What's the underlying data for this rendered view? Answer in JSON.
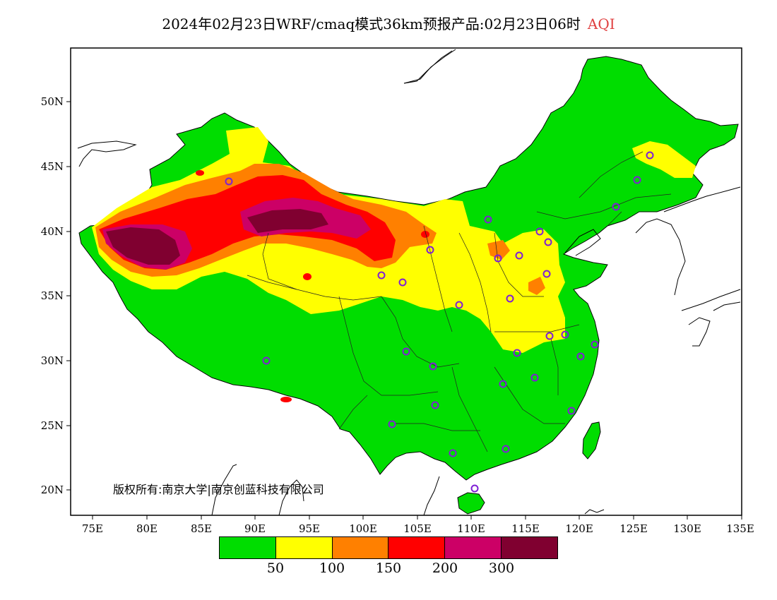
{
  "title": {
    "text": "2024年02月23日WRF/cmaq模式36km预报产品:02月23日06时",
    "variable": "AQI"
  },
  "axes": {
    "x_ticks": [
      "75E",
      "80E",
      "85E",
      "90E",
      "95E",
      "100E",
      "105E",
      "110E",
      "115E",
      "120E",
      "125E",
      "130E",
      "135E"
    ],
    "y_ticks": [
      "50N",
      "45N",
      "40N",
      "35N",
      "30N",
      "25N",
      "20N"
    ]
  },
  "copyright": "版权所有:南京大学|南京创蓝科技有限公司",
  "legend": {
    "colors": [
      "#00dd00",
      "#ffff00",
      "#ff8000",
      "#ff0000",
      "#cc0066",
      "#800030"
    ],
    "labels": [
      "50",
      "100",
      "150",
      "200",
      "300"
    ]
  },
  "colors": {
    "ocean": "#ffffff",
    "coastline": "#000000",
    "province_border": "#333333",
    "station_marker": "#7f1fd6"
  }
}
